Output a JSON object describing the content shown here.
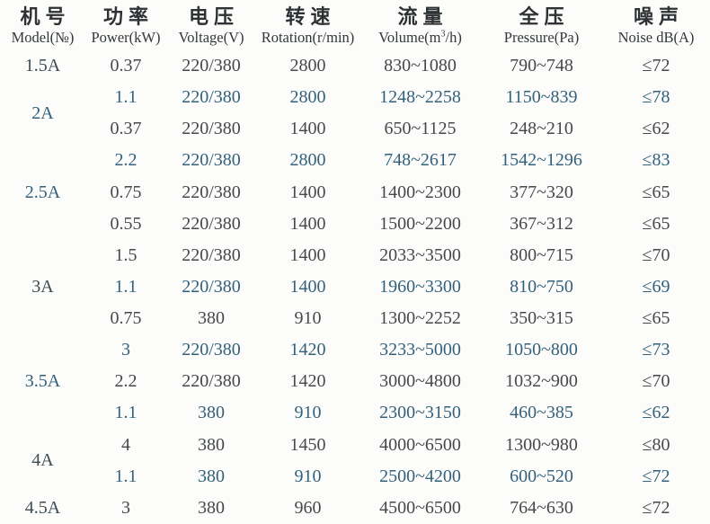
{
  "page": {
    "background": "#fcfcfa"
  },
  "colors": {
    "text_dark": "#45494b",
    "text_blue": "#33617c",
    "header_text": "#2e3234"
  },
  "header": {
    "columns": {
      "model": {
        "zh": "机号",
        "en": "Model(№)"
      },
      "power": {
        "zh": "功率",
        "en": "Power(kW)"
      },
      "voltage": {
        "zh": "电压",
        "en": "Voltage(V)"
      },
      "rotation": {
        "zh": "转速",
        "en": "Rotation(r/min)"
      },
      "volume": {
        "zh": "流量",
        "en_pre": "Volume(m",
        "en_sup": "3",
        "en_post": "/h)"
      },
      "pressure": {
        "zh": "全压",
        "en": "Pressure(Pa)"
      },
      "noise": {
        "zh": "噪声",
        "en": "Noise dB(A)"
      }
    }
  },
  "models": [
    {
      "label": "1.5A",
      "rowspan": 1
    },
    {
      "label": "2A",
      "rowspan": 2
    },
    {
      "label": "2.5A",
      "rowspan": 3
    },
    {
      "label": "3A",
      "rowspan": 3
    },
    {
      "label": "3.5A",
      "rowspan": 3
    },
    {
      "label": "4A",
      "rowspan": 2
    },
    {
      "label": "4.5A",
      "rowspan": 1
    }
  ],
  "rows": [
    {
      "power": "0.37",
      "voltage": "220/380",
      "rotation": "2800",
      "volume": "830~1080",
      "pressure": "790~748",
      "noise": "≤72"
    },
    {
      "power": "1.1",
      "voltage": "220/380",
      "rotation": "2800",
      "volume": "1248~2258",
      "pressure": "1150~839",
      "noise": "≤78"
    },
    {
      "power": "0.37",
      "voltage": "220/380",
      "rotation": "1400",
      "volume": "650~1125",
      "pressure": "248~210",
      "noise": "≤62"
    },
    {
      "power": "2.2",
      "voltage": "220/380",
      "rotation": "2800",
      "volume": "748~2617",
      "pressure": "1542~1296",
      "noise": "≤83"
    },
    {
      "power": "0.75",
      "voltage": "220/380",
      "rotation": "1400",
      "volume": "1400~2300",
      "pressure": "377~320",
      "noise": "≤65"
    },
    {
      "power": "0.55",
      "voltage": "220/380",
      "rotation": "1400",
      "volume": "1500~2200",
      "pressure": "367~312",
      "noise": "≤65"
    },
    {
      "power": "1.5",
      "voltage": "220/380",
      "rotation": "1400",
      "volume": "2033~3500",
      "pressure": "800~715",
      "noise": "≤70"
    },
    {
      "power": "1.1",
      "voltage": "220/380",
      "rotation": "1400",
      "volume": "1960~3300",
      "pressure": "810~750",
      "noise": "≤69"
    },
    {
      "power": "0.75",
      "voltage": "380",
      "rotation": "910",
      "volume": "1300~2252",
      "pressure": "350~315",
      "noise": "≤65"
    },
    {
      "power": "3",
      "voltage": "220/380",
      "rotation": "1420",
      "volume": "3233~5000",
      "pressure": "1050~800",
      "noise": "≤73"
    },
    {
      "power": "2.2",
      "voltage": "220/380",
      "rotation": "1420",
      "volume": "3000~4800",
      "pressure": "1032~900",
      "noise": "≤70"
    },
    {
      "power": "1.1",
      "voltage": "380",
      "rotation": "910",
      "volume": "2300~3150",
      "pressure": "460~385",
      "noise": "≤62"
    },
    {
      "power": "4",
      "voltage": "380",
      "rotation": "1450",
      "volume": "4000~6500",
      "pressure": "1300~980",
      "noise": "≤80"
    },
    {
      "power": "1.1",
      "voltage": "380",
      "rotation": "910",
      "volume": "2500~4200",
      "pressure": "600~520",
      "noise": "≤72"
    },
    {
      "power": "3",
      "voltage": "380",
      "rotation": "960",
      "volume": "4500~6500",
      "pressure": "764~630",
      "noise": "≤72"
    }
  ]
}
